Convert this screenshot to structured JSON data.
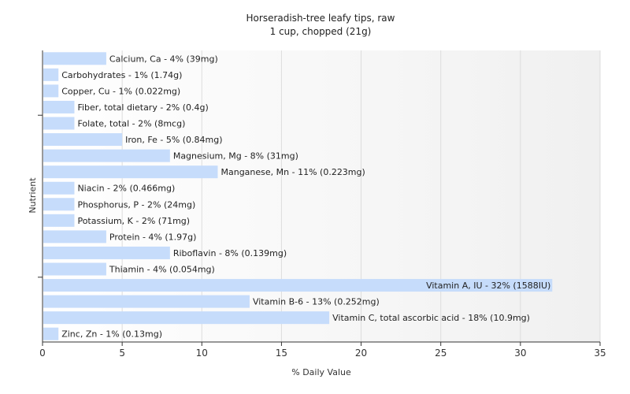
{
  "chart_data": {
    "type": "bar",
    "orientation": "horizontal",
    "title": "Horseradish-tree leafy tips, raw",
    "subtitle": "1 cup, chopped (21g)",
    "xlabel": "% Daily Value",
    "ylabel": "Nutrient",
    "xlim": [
      0,
      35
    ],
    "xticks": [
      0,
      5,
      10,
      15,
      20,
      25,
      30,
      35
    ],
    "grid": true,
    "bar_color": "#c6dcfb",
    "categories": [
      "Calcium, Ca",
      "Carbohydrates",
      "Copper, Cu",
      "Fiber, total dietary",
      "Folate, total",
      "Iron, Fe",
      "Magnesium, Mg",
      "Manganese, Mn",
      "Niacin",
      "Phosphorus, P",
      "Potassium, K",
      "Protein",
      "Riboflavin",
      "Thiamin",
      "Vitamin A, IU",
      "Vitamin B-6",
      "Vitamin C, total ascorbic acid",
      "Zinc, Zn"
    ],
    "values": [
      4,
      1,
      1,
      2,
      2,
      5,
      8,
      11,
      2,
      2,
      2,
      4,
      8,
      4,
      32,
      13,
      18,
      1
    ],
    "labels": [
      "Calcium, Ca - 4% (39mg)",
      "Carbohydrates - 1% (1.74g)",
      "Copper, Cu - 1% (0.022mg)",
      "Fiber, total dietary - 2% (0.4g)",
      "Folate, total - 2% (8mcg)",
      "Iron, Fe - 5% (0.84mg)",
      "Magnesium, Mg - 8% (31mg)",
      "Manganese, Mn - 11% (0.223mg)",
      "Niacin - 2% (0.466mg)",
      "Phosphorus, P - 2% (24mg)",
      "Potassium, K - 2% (71mg)",
      "Protein - 4% (1.97g)",
      "Riboflavin - 8% (0.139mg)",
      "Thiamin - 4% (0.054mg)",
      "Vitamin A, IU - 32% (1588IU)",
      "Vitamin B-6 - 13% (0.252mg)",
      "Vitamin C, total ascorbic acid - 18% (10.9mg)",
      "Zinc, Zn - 1% (0.13mg)"
    ]
  }
}
